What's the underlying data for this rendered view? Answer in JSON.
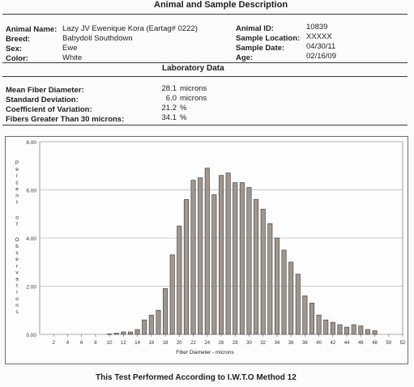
{
  "header": {
    "title": "Animal and Sample Description"
  },
  "animal": {
    "name_label": "Animal Name:",
    "name_value": "Lazy JV Ewenique Kora (Eartag# 0222)",
    "breed_label": "Breed:",
    "breed_value": "Babydoll Southdown",
    "sex_label": "Sex:",
    "sex_value": "Ewe",
    "color_label": "Color:",
    "color_value": "White",
    "id_label": "Animal ID:",
    "id_value": "10839",
    "location_label": "Sample Location:",
    "location_value": "XXXXX",
    "date_label": "Sample Date:",
    "date_value": "04/30/11",
    "age_label": "Age:",
    "age_value": "02/16/09"
  },
  "lab": {
    "title": "Laboratory Data",
    "rows": [
      {
        "label": "Mean Fiber Diameter:",
        "value": "28.1",
        "unit": "microns"
      },
      {
        "label": "Standard Deviation:",
        "value": "6.0",
        "unit": "microns"
      },
      {
        "label": "Coefficient of Variation:",
        "value": "21.2",
        "unit": "%"
      },
      {
        "label": "Fibers Greater Than 30 microns:",
        "value": "34.1",
        "unit": "%"
      }
    ]
  },
  "chart_data": {
    "type": "bar",
    "xlabel": "Fiber Diameter - microns",
    "ylabel": "Percent of Observations",
    "ylim": [
      0,
      8
    ],
    "xlim": [
      0,
      52
    ],
    "yticks": [
      "0.00",
      "2.00",
      "4.00",
      "6.00",
      "8.00"
    ],
    "xticks": [
      "2",
      "4",
      "6",
      "8",
      "10",
      "12",
      "14",
      "16",
      "18",
      "20",
      "22",
      "24",
      "26",
      "28",
      "30",
      "32",
      "34",
      "36",
      "38",
      "40",
      "42",
      "44",
      "46",
      "48",
      "50",
      "52"
    ],
    "grid": true,
    "x": [
      10,
      11,
      12,
      13,
      14,
      15,
      16,
      17,
      18,
      19,
      20,
      21,
      22,
      23,
      24,
      25,
      26,
      27,
      28,
      29,
      30,
      31,
      32,
      33,
      34,
      35,
      36,
      37,
      38,
      39,
      40,
      41,
      42,
      43,
      44,
      45,
      46,
      47,
      48
    ],
    "values": [
      0.02,
      0.05,
      0.1,
      0.1,
      0.2,
      0.6,
      0.8,
      1.0,
      1.9,
      3.3,
      4.5,
      5.6,
      6.4,
      6.5,
      6.9,
      5.8,
      6.6,
      6.7,
      6.3,
      6.3,
      6.1,
      5.6,
      5.2,
      4.6,
      4.0,
      3.5,
      3.0,
      2.5,
      1.6,
      1.3,
      0.8,
      0.6,
      0.5,
      0.4,
      0.3,
      0.4,
      0.35,
      0.2,
      0.15
    ]
  },
  "footer": {
    "text": "This Test Performed According to I.W.T.O Method 12"
  }
}
